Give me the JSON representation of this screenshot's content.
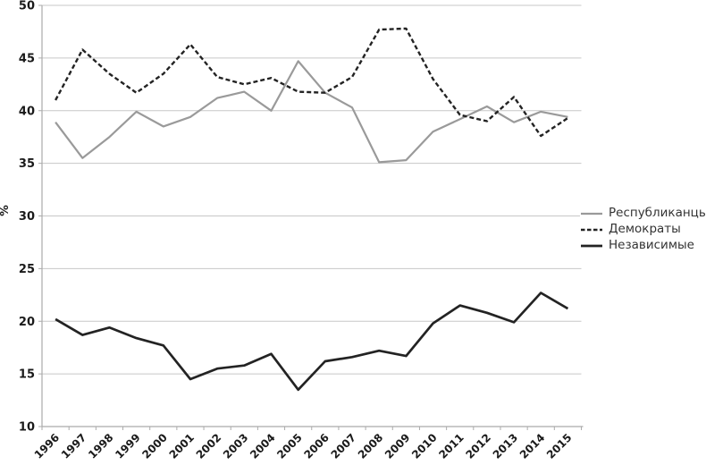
{
  "chart_data": {
    "type": "line",
    "title": "",
    "ylabel": "%",
    "xlabel": "",
    "ylim": [
      10,
      50
    ],
    "yticks": [
      10,
      15,
      20,
      25,
      30,
      35,
      40,
      45,
      50
    ],
    "grid": "horizontal",
    "legend_position": "right-middle",
    "x": [
      "1996",
      "1997",
      "1998",
      "1999",
      "2000",
      "2001",
      "2002",
      "2003",
      "2004",
      "2005",
      "2006",
      "2007",
      "2008",
      "2009",
      "2010",
      "2011",
      "2012",
      "2013",
      "2014",
      "2015"
    ],
    "series": [
      {
        "name": "Республиканцы",
        "style": "solid",
        "color": "#9a9a9a",
        "stroke_width": 2.2,
        "values": [
          38.9,
          35.5,
          37.5,
          39.9,
          38.5,
          39.4,
          41.2,
          41.8,
          40.0,
          44.7,
          41.7,
          40.3,
          35.1,
          35.3,
          38.0,
          39.2,
          40.4,
          38.9,
          39.9,
          39.4
        ]
      },
      {
        "name": "Демократы",
        "style": "dashed",
        "color": "#232323",
        "stroke_width": 2.4,
        "values": [
          41.0,
          45.8,
          43.5,
          41.7,
          43.5,
          46.3,
          43.2,
          42.5,
          43.1,
          41.8,
          41.7,
          43.2,
          47.7,
          47.8,
          43.0,
          39.6,
          39.0,
          41.3,
          37.6,
          39.3
        ]
      },
      {
        "name": "Независимые",
        "style": "solid",
        "color": "#232323",
        "stroke_width": 2.7,
        "values": [
          20.2,
          18.7,
          19.4,
          18.4,
          17.7,
          14.5,
          15.5,
          15.8,
          16.9,
          13.5,
          16.2,
          16.6,
          17.2,
          16.7,
          19.8,
          21.5,
          20.8,
          19.9,
          22.7,
          21.2
        ]
      }
    ],
    "colors": {
      "background": "#ffffff",
      "gridline": "#c7c7c7",
      "axis": "#ababab",
      "tick_label": "#1a1a1a",
      "legend_text": "#333333"
    }
  }
}
